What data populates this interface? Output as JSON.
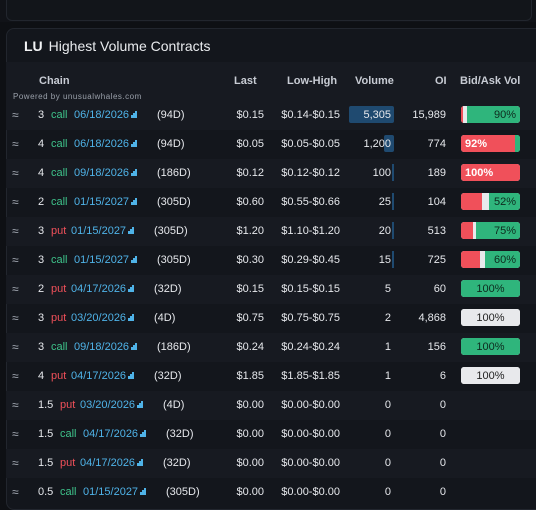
{
  "header": {
    "ticker": "LU",
    "title": "Highest Volume Contracts"
  },
  "columns": {
    "chain": "Chain",
    "last": "Last",
    "low_high": "Low-High",
    "volume": "Volume",
    "oi": "OI",
    "bid_ask": "Bid/Ask Vol"
  },
  "powered_by": "Powered by unusualwhales.com",
  "rows": [
    {
      "qty": "3",
      "type": "call",
      "date": "06/18/2026",
      "days": "(94D)",
      "last": "$0.15",
      "range": "$0.14-$0.15",
      "volume": "5,305",
      "oi": "15,989",
      "bidask": "90%",
      "vol_frac": 1.0,
      "red": 0.04,
      "white": 0.06,
      "green": 0.9,
      "lbl_side": "green"
    },
    {
      "qty": "4",
      "type": "call",
      "date": "06/18/2026",
      "days": "(94D)",
      "last": "$0.05",
      "range": "$0.05-$0.05",
      "volume": "1,200",
      "oi": "774",
      "bidask": "92%",
      "vol_frac": 0.23,
      "red": 0.92,
      "white": 0.0,
      "green": 0.08,
      "lbl_side": "red"
    },
    {
      "qty": "4",
      "type": "call",
      "date": "09/18/2026",
      "days": "(186D)",
      "last": "$0.12",
      "range": "$0.12-$0.12",
      "volume": "100",
      "oi": "189",
      "bidask": "100%",
      "vol_frac": 0.02,
      "red": 1.0,
      "white": 0.0,
      "green": 0.0,
      "lbl_side": "red"
    },
    {
      "qty": "2",
      "type": "call",
      "date": "01/15/2027",
      "days": "(305D)",
      "last": "$0.60",
      "range": "$0.55-$0.66",
      "volume": "25",
      "oi": "104",
      "bidask": "52%",
      "vol_frac": 0.01,
      "red": 0.36,
      "white": 0.12,
      "green": 0.52,
      "lbl_side": "green"
    },
    {
      "qty": "3",
      "type": "put",
      "date": "01/15/2027",
      "days": "(305D)",
      "last": "$1.20",
      "range": "$1.10-$1.20",
      "volume": "20",
      "oi": "513",
      "bidask": "75%",
      "vol_frac": 0.01,
      "red": 0.2,
      "white": 0.05,
      "green": 0.75,
      "lbl_side": "green"
    },
    {
      "qty": "3",
      "type": "call",
      "date": "01/15/2027",
      "days": "(305D)",
      "last": "$0.30",
      "range": "$0.29-$0.45",
      "volume": "15",
      "oi": "725",
      "bidask": "60%",
      "vol_frac": 0.01,
      "red": 0.32,
      "white": 0.08,
      "green": 0.6,
      "lbl_side": "green"
    },
    {
      "qty": "2",
      "type": "put",
      "date": "04/17/2026",
      "days": "(32D)",
      "last": "$0.15",
      "range": "$0.15-$0.15",
      "volume": "5",
      "oi": "60",
      "bidask": "100%",
      "vol_frac": 0,
      "red": 0.0,
      "white": 0.0,
      "green": 1.0,
      "lbl_side": "green"
    },
    {
      "qty": "3",
      "type": "put",
      "date": "03/20/2026",
      "days": "(4D)",
      "last": "$0.75",
      "range": "$0.75-$0.75",
      "volume": "2",
      "oi": "4,868",
      "bidask": "100%",
      "vol_frac": 0,
      "red": 0.0,
      "white": 1.0,
      "green": 0.0,
      "lbl_side": "white"
    },
    {
      "qty": "3",
      "type": "call",
      "date": "09/18/2026",
      "days": "(186D)",
      "last": "$0.24",
      "range": "$0.24-$0.24",
      "volume": "1",
      "oi": "156",
      "bidask": "100%",
      "vol_frac": 0,
      "red": 0.0,
      "white": 0.0,
      "green": 1.0,
      "lbl_side": "green"
    },
    {
      "qty": "4",
      "type": "put",
      "date": "04/17/2026",
      "days": "(32D)",
      "last": "$1.85",
      "range": "$1.85-$1.85",
      "volume": "1",
      "oi": "6",
      "bidask": "100%",
      "vol_frac": 0,
      "red": 0.0,
      "white": 1.0,
      "green": 0.0,
      "lbl_side": "white"
    },
    {
      "qty": "1.5",
      "type": "put",
      "date": "03/20/2026",
      "days": "(4D)",
      "last": "$0.00",
      "range": "$0.00-$0.00",
      "volume": "0",
      "oi": "0",
      "bidask": "",
      "vol_frac": 0,
      "red": 0,
      "white": 0,
      "green": 0,
      "lbl_side": "none"
    },
    {
      "qty": "1.5",
      "type": "call",
      "date": "04/17/2026",
      "days": "(32D)",
      "last": "$0.00",
      "range": "$0.00-$0.00",
      "volume": "0",
      "oi": "0",
      "bidask": "",
      "vol_frac": 0,
      "red": 0,
      "white": 0,
      "green": 0,
      "lbl_side": "none"
    },
    {
      "qty": "1.5",
      "type": "put",
      "date": "04/17/2026",
      "days": "(32D)",
      "last": "$0.00",
      "range": "$0.00-$0.00",
      "volume": "0",
      "oi": "0",
      "bidask": "",
      "vol_frac": 0,
      "red": 0,
      "white": 0,
      "green": 0,
      "lbl_side": "none"
    },
    {
      "qty": "0.5",
      "type": "call",
      "date": "01/15/2027",
      "days": "(305D)",
      "last": "$0.00",
      "range": "$0.00-$0.00",
      "volume": "0",
      "oi": "0",
      "bidask": "",
      "vol_frac": 0,
      "red": 0,
      "white": 0,
      "green": 0,
      "lbl_side": "none"
    }
  ],
  "colors": {
    "call": "#3ec28a",
    "put": "#f0505a",
    "date": "#4fb3e8",
    "green_bar": "#2fb57c",
    "red_bar": "#f0505a",
    "volume_bar": "#1f4a70"
  },
  "icons": {
    "row_icon": "waves-icon",
    "mini_chart": "bar-chart-icon"
  }
}
